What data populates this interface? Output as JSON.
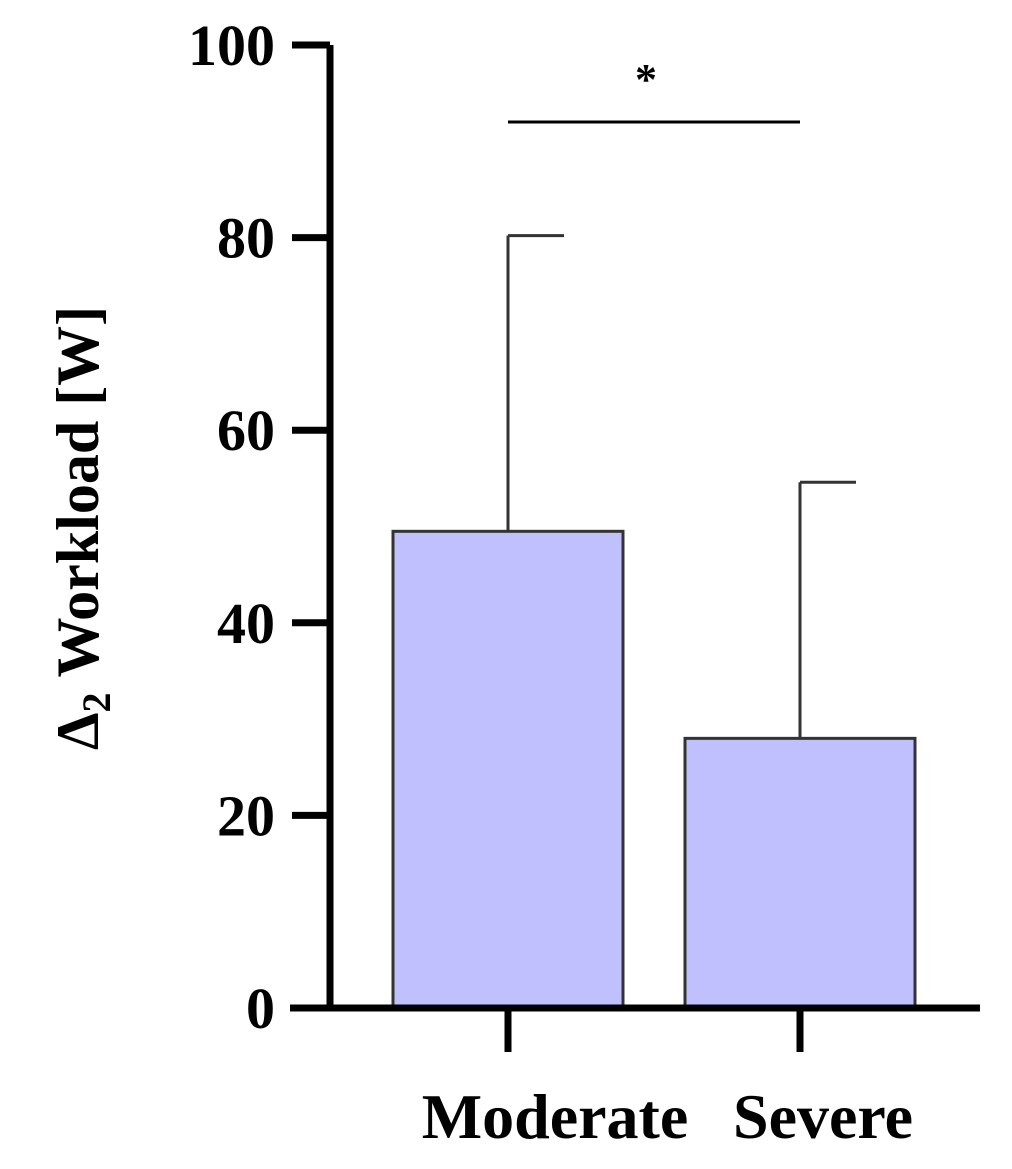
{
  "chart_data": {
    "type": "bar",
    "categories": [
      "Moderate",
      "Severe"
    ],
    "values": [
      49.5,
      28
    ],
    "error_upper": [
      80.2,
      54.6
    ],
    "ylabel_symbol": "Δ",
    "ylabel_subscript": "2",
    "ylabel_text": " Workload [W]",
    "ylim": [
      0,
      100
    ],
    "yticks": [
      0,
      20,
      40,
      60,
      80,
      100
    ],
    "grid": false,
    "significance": {
      "pair": [
        0,
        1
      ],
      "level": 92,
      "label": "*"
    },
    "colors": {
      "bar_fill": "#c0c0ff",
      "bar_stroke": "#333333",
      "axis": "#000000",
      "error": "#333333"
    }
  }
}
